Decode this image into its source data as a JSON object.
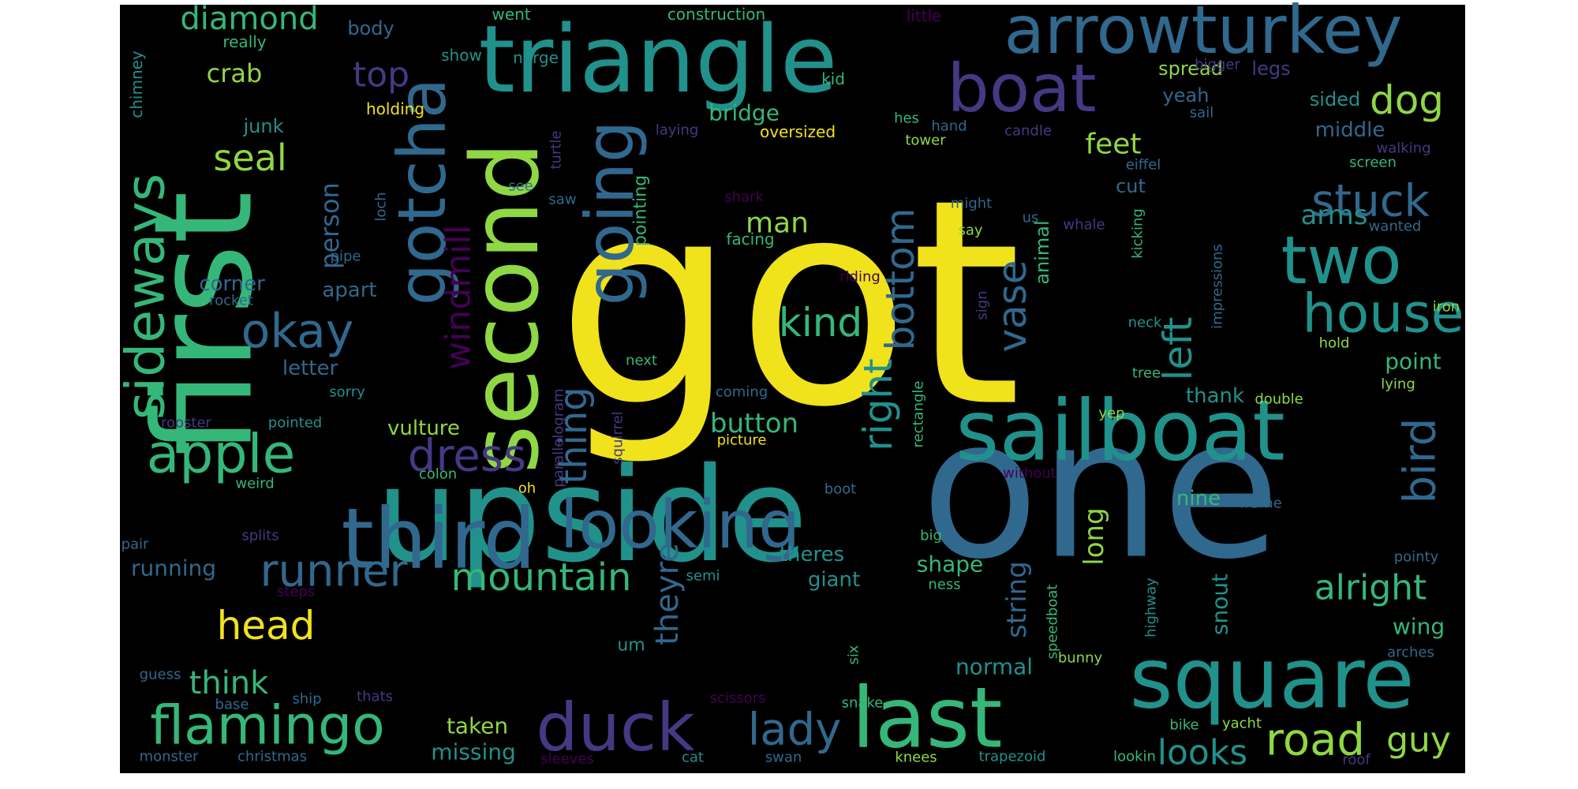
{
  "background": "#000000",
  "palette": {
    "yellow": "#f0e31c",
    "lime": "#8fd744",
    "green": "#35b779",
    "teal": "#21918c",
    "blue": "#31688e",
    "indigo": "#443983",
    "purple": "#440154"
  },
  "words": [
    {
      "text": "got",
      "color": "yellow"
    },
    {
      "text": "one",
      "color": "blue"
    },
    {
      "text": "first",
      "color": "green"
    },
    {
      "text": "upside",
      "color": "teal"
    },
    {
      "text": "triangle",
      "color": "teal"
    },
    {
      "text": "second",
      "color": "lime"
    },
    {
      "text": "sailboat",
      "color": "teal"
    },
    {
      "text": "last",
      "color": "green"
    },
    {
      "text": "third",
      "color": "blue"
    },
    {
      "text": "square",
      "color": "teal"
    },
    {
      "text": "arrowturkey",
      "color": "blue"
    },
    {
      "text": "gotcha",
      "color": "blue"
    },
    {
      "text": "duck",
      "color": "indigo"
    },
    {
      "text": "boat",
      "color": "indigo"
    },
    {
      "text": "going",
      "color": "blue"
    },
    {
      "text": "looking",
      "color": "blue"
    },
    {
      "text": "two",
      "color": "teal"
    },
    {
      "text": "flamingo",
      "color": "green"
    },
    {
      "text": "sideways",
      "color": "green"
    },
    {
      "text": "apple",
      "color": "green"
    },
    {
      "text": "runner",
      "color": "blue"
    },
    {
      "text": "house",
      "color": "teal"
    },
    {
      "text": "okay",
      "color": "blue"
    },
    {
      "text": "mountain",
      "color": "green"
    },
    {
      "text": "dress",
      "color": "indigo"
    },
    {
      "text": "lady",
      "color": "blue"
    },
    {
      "text": "road",
      "color": "lime"
    },
    {
      "text": "stuck",
      "color": "blue"
    },
    {
      "text": "bird",
      "color": "blue"
    },
    {
      "text": "head",
      "color": "yellow"
    },
    {
      "text": "right",
      "color": "teal"
    },
    {
      "text": "bottom",
      "color": "blue"
    },
    {
      "text": "windmill",
      "color": "purple"
    },
    {
      "text": "kind",
      "color": "green"
    },
    {
      "text": "dog",
      "color": "lime"
    },
    {
      "text": "vase",
      "color": "blue"
    },
    {
      "text": "left",
      "color": "teal"
    },
    {
      "text": "thing",
      "color": "blue"
    },
    {
      "text": "seal",
      "color": "lime"
    },
    {
      "text": "looks",
      "color": "teal"
    },
    {
      "text": "alright",
      "color": "green"
    },
    {
      "text": "guy",
      "color": "lime"
    },
    {
      "text": "think",
      "color": "green"
    },
    {
      "text": "theyre",
      "color": "blue"
    },
    {
      "text": "top",
      "color": "indigo"
    },
    {
      "text": "diamond",
      "color": "green"
    },
    {
      "text": "feet",
      "color": "lime"
    },
    {
      "text": "man",
      "color": "lime"
    },
    {
      "text": "button",
      "color": "green"
    },
    {
      "text": "string",
      "color": "blue"
    },
    {
      "text": "arms",
      "color": "teal"
    },
    {
      "text": "person",
      "color": "blue"
    },
    {
      "text": "crab",
      "color": "lime"
    },
    {
      "text": "long",
      "color": "lime"
    },
    {
      "text": "point",
      "color": "green"
    },
    {
      "text": "normal",
      "color": "teal"
    },
    {
      "text": "running",
      "color": "blue"
    },
    {
      "text": "middle",
      "color": "blue"
    },
    {
      "text": "shape",
      "color": "green"
    },
    {
      "text": "taken",
      "color": "lime"
    },
    {
      "text": "missing",
      "color": "teal"
    },
    {
      "text": "wing",
      "color": "green"
    },
    {
      "text": "snout",
      "color": "teal"
    },
    {
      "text": "bridge",
      "color": "green"
    },
    {
      "text": "vulture",
      "color": "lime"
    },
    {
      "text": "apart",
      "color": "blue"
    },
    {
      "text": "corner",
      "color": "blue"
    },
    {
      "text": "letter",
      "color": "blue"
    },
    {
      "text": "nine",
      "color": "green"
    },
    {
      "text": "thank",
      "color": "teal"
    },
    {
      "text": "giant",
      "color": "teal"
    },
    {
      "text": "theres",
      "color": "teal"
    },
    {
      "text": "cut",
      "color": "blue"
    },
    {
      "text": "spread",
      "color": "lime"
    },
    {
      "text": "legs",
      "color": "indigo"
    },
    {
      "text": "sided",
      "color": "teal"
    },
    {
      "text": "yeah",
      "color": "blue"
    },
    {
      "text": "junk",
      "color": "teal"
    },
    {
      "text": "body",
      "color": "blue"
    },
    {
      "text": "animal",
      "color": "green"
    },
    {
      "text": "pointing",
      "color": "green"
    },
    {
      "text": "facing",
      "color": "green"
    },
    {
      "text": "um",
      "color": "teal"
    },
    {
      "text": "oversized",
      "color": "yellow"
    },
    {
      "text": "holding",
      "color": "yellow"
    },
    {
      "text": "construction",
      "color": "green"
    },
    {
      "text": "went",
      "color": "green"
    },
    {
      "text": "really",
      "color": "green"
    },
    {
      "text": "chimney",
      "color": "teal"
    },
    {
      "text": "show",
      "color": "teal"
    },
    {
      "text": "norge",
      "color": "teal"
    },
    {
      "text": "little",
      "color": "purple"
    },
    {
      "text": "kid",
      "color": "green"
    },
    {
      "text": "bigger",
      "color": "indigo"
    },
    {
      "text": "sail",
      "color": "blue"
    },
    {
      "text": "hes",
      "color": "green"
    },
    {
      "text": "hand",
      "color": "blue"
    },
    {
      "text": "candle",
      "color": "indigo"
    },
    {
      "text": "tower",
      "color": "lime"
    },
    {
      "text": "laying",
      "color": "indigo"
    },
    {
      "text": "turtle",
      "color": "indigo"
    },
    {
      "text": "eiffel",
      "color": "blue"
    },
    {
      "text": "screen",
      "color": "green"
    },
    {
      "text": "walking",
      "color": "indigo"
    },
    {
      "text": "loch",
      "color": "blue"
    },
    {
      "text": "see",
      "color": "blue"
    },
    {
      "text": "saw",
      "color": "blue"
    },
    {
      "text": "shark",
      "color": "purple"
    },
    {
      "text": "might",
      "color": "blue"
    },
    {
      "text": "us",
      "color": "blue"
    },
    {
      "text": "whale",
      "color": "indigo"
    },
    {
      "text": "wanted",
      "color": "blue"
    },
    {
      "text": "say",
      "color": "lime"
    },
    {
      "text": "kicking",
      "color": "green"
    },
    {
      "text": "pipe",
      "color": "blue"
    },
    {
      "text": "impressions",
      "color": "blue"
    },
    {
      "text": "iron",
      "color": "lime"
    },
    {
      "text": "riding",
      "color": "purple"
    },
    {
      "text": "rocket",
      "color": "blue"
    },
    {
      "text": "sign",
      "color": "indigo"
    },
    {
      "text": "neck",
      "color": "teal"
    },
    {
      "text": "hold",
      "color": "lime"
    },
    {
      "text": "next",
      "color": "green"
    },
    {
      "text": "tree",
      "color": "green"
    },
    {
      "text": "lying",
      "color": "lime"
    },
    {
      "text": "sorry",
      "color": "teal"
    },
    {
      "text": "coming",
      "color": "blue"
    },
    {
      "text": "rooster",
      "color": "indigo"
    },
    {
      "text": "pointed",
      "color": "teal"
    },
    {
      "text": "parallelogram",
      "color": "indigo"
    },
    {
      "text": "squirrel",
      "color": "indigo"
    },
    {
      "text": "double",
      "color": "lime"
    },
    {
      "text": "yep",
      "color": "lime"
    },
    {
      "text": "picture",
      "color": "yellow"
    },
    {
      "text": "rectangle",
      "color": "green"
    },
    {
      "text": "colon",
      "color": "green"
    },
    {
      "text": "without",
      "color": "purple"
    },
    {
      "text": "weird",
      "color": "green"
    },
    {
      "text": "oh",
      "color": "yellow"
    },
    {
      "text": "boot",
      "color": "blue"
    },
    {
      "text": "frame",
      "color": "blue"
    },
    {
      "text": "pair",
      "color": "blue"
    },
    {
      "text": "splits",
      "color": "indigo"
    },
    {
      "text": "big",
      "color": "green"
    },
    {
      "text": "steps",
      "color": "purple"
    },
    {
      "text": "semi",
      "color": "teal"
    },
    {
      "text": "ness",
      "color": "green"
    },
    {
      "text": "pointy",
      "color": "blue"
    },
    {
      "text": "highway",
      "color": "teal"
    },
    {
      "text": "speedboat",
      "color": "green"
    },
    {
      "text": "arches",
      "color": "blue"
    },
    {
      "text": "guess",
      "color": "blue"
    },
    {
      "text": "six",
      "color": "green"
    },
    {
      "text": "bunny",
      "color": "lime"
    },
    {
      "text": "base",
      "color": "blue"
    },
    {
      "text": "ship",
      "color": "blue"
    },
    {
      "text": "thats",
      "color": "indigo"
    },
    {
      "text": "scissors",
      "color": "purple"
    },
    {
      "text": "snake",
      "color": "green"
    },
    {
      "text": "bike",
      "color": "green"
    },
    {
      "text": "yacht",
      "color": "lime"
    },
    {
      "text": "monster",
      "color": "blue"
    },
    {
      "text": "christmas",
      "color": "blue"
    },
    {
      "text": "sleeves",
      "color": "purple"
    },
    {
      "text": "cat",
      "color": "teal"
    },
    {
      "text": "swan",
      "color": "blue"
    },
    {
      "text": "knees",
      "color": "lime"
    },
    {
      "text": "trapezoid",
      "color": "teal"
    },
    {
      "text": "lookin",
      "color": "green"
    },
    {
      "text": "roof",
      "color": "indigo"
    }
  ]
}
